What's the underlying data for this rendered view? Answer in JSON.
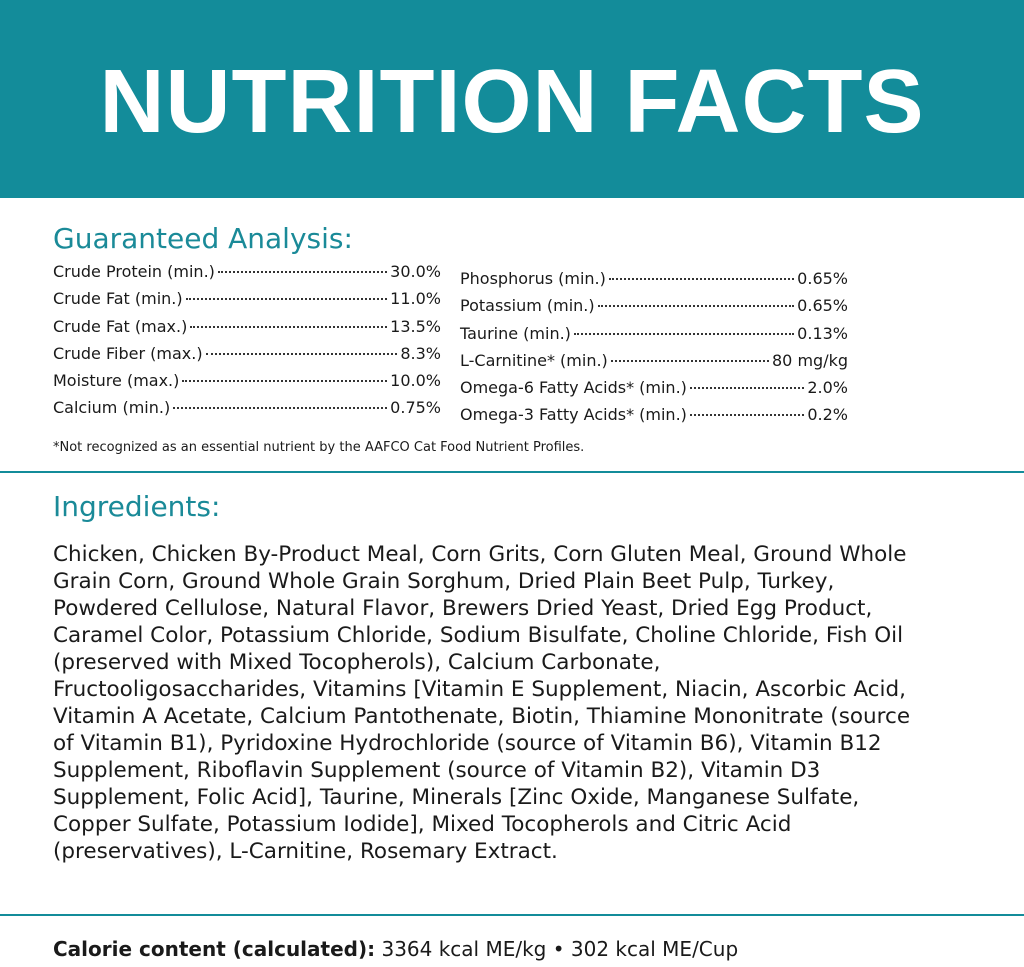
{
  "header": {
    "title": "NUTRITION FACTS"
  },
  "analysis": {
    "heading": "Guaranteed Analysis:",
    "left": [
      {
        "name": "Crude Protein (min.)",
        "value": "30.0%"
      },
      {
        "name": "Crude Fat (min.)",
        "value": "11.0%"
      },
      {
        "name": "Crude Fat (max.)",
        "value": "13.5%"
      },
      {
        "name": "Crude Fiber (max.)",
        "value": "8.3%"
      },
      {
        "name": "Moisture (max.)",
        "value": "10.0%"
      },
      {
        "name": "Calcium (min.)",
        "value": "0.75%"
      }
    ],
    "right": [
      {
        "name": "Phosphorus (min.)",
        "value": "0.65%"
      },
      {
        "name": "Potassium (min.)",
        "value": "0.65%"
      },
      {
        "name": "Taurine (min.)",
        "value": "0.13%"
      },
      {
        "name": "L-Carnitine* (min.)",
        "value": "80 mg/kg"
      },
      {
        "name": "Omega-6 Fatty Acids* (min.)",
        "value": "2.0%"
      },
      {
        "name": "Omega-3 Fatty Acids* (min.)",
        "value": "0.2%"
      }
    ],
    "footnote": "*Not recognized as an essential nutrient by the AAFCO Cat Food Nutrient Profiles."
  },
  "ingredients": {
    "heading": "Ingredients:",
    "text": "Chicken, Chicken By-Product Meal, Corn Grits, Corn Gluten Meal, Ground Whole Grain Corn, Ground Whole Grain Sorghum, Dried Plain Beet Pulp, Turkey, Powdered Cellulose, Natural Flavor, Brewers Dried Yeast, Dried Egg Product, Caramel Color, Potassium Chloride, Sodium Bisulfate, Choline Chloride, Fish Oil (preserved with Mixed Tocopherols), Calcium Carbonate, Fructooligosaccharides, Vitamins [Vitamin E Supplement, Niacin, Ascorbic Acid, Vitamin A Acetate, Calcium Pantothenate, Biotin, Thiamine Mononitrate (source of Vitamin B1), Pyridoxine Hydrochloride (source of Vitamin B6), Vitamin B12 Supplement, Riboflavin Supplement (source of Vitamin B2), Vitamin D3 Supplement, Folic Acid], Taurine, Minerals [Zinc Oxide, Manganese Sulfate, Copper Sulfate, Potassium Iodide], Mixed Tocopherols and Citric Acid (preservatives), L-Carnitine, Rosemary Extract."
  },
  "calorie": {
    "label": "Calorie content (calculated):",
    "value": "3364 kcal ME/kg • 302 kcal ME/Cup"
  }
}
